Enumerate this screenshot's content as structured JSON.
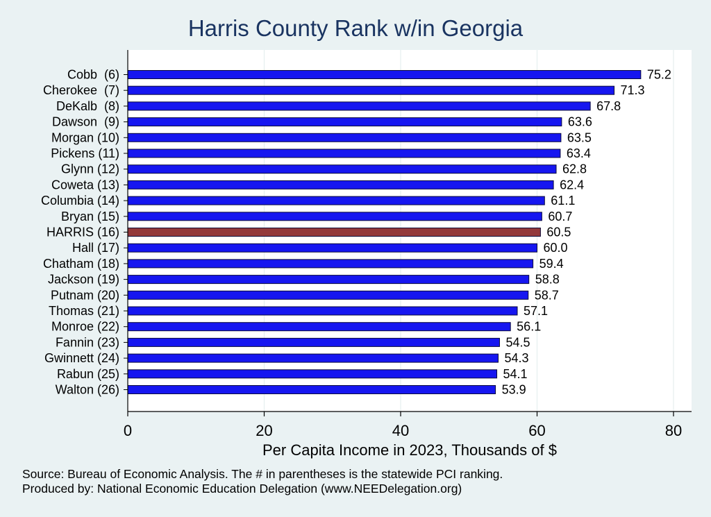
{
  "chart_data": {
    "type": "bar",
    "orientation": "horizontal",
    "title": "Harris County Rank w/in Georgia",
    "xlabel": "Per Capita Income in 2023, Thousands of $",
    "ylabel": "",
    "xlim": [
      0,
      80
    ],
    "xticks": [
      "0",
      "20",
      "40",
      "60",
      "80"
    ],
    "categories": [
      "Cobb  (6)",
      "Cherokee  (7)",
      "DeKalb  (8)",
      "Dawson  (9)",
      "Morgan (10)",
      "Pickens (11)",
      "Glynn (12)",
      "Coweta (13)",
      "Columbia (14)",
      "Bryan (15)",
      "HARRIS (16)",
      "Hall (17)",
      "Chatham (18)",
      "Jackson (19)",
      "Putnam (20)",
      "Thomas (21)",
      "Monroe (22)",
      "Fannin (23)",
      "Gwinnett (24)",
      "Rabun (25)",
      "Walton (26)"
    ],
    "values": [
      75.2,
      71.3,
      67.8,
      63.6,
      63.5,
      63.4,
      62.8,
      62.4,
      61.1,
      60.7,
      60.5,
      60.0,
      59.4,
      58.8,
      58.7,
      57.1,
      56.1,
      54.5,
      54.3,
      54.1,
      53.9
    ],
    "value_labels": [
      "75.2",
      "71.3",
      "67.8",
      "63.6",
      "63.5",
      "63.4",
      "62.8",
      "62.4",
      "61.1",
      "60.7",
      "60.5",
      "60.0",
      "59.4",
      "58.8",
      "58.7",
      "57.1",
      "56.1",
      "54.5",
      "54.3",
      "54.1",
      "53.9"
    ],
    "highlight_index": 10,
    "colors": {
      "bar": "#1616f0",
      "highlight": "#93393b",
      "outline": "#0b0b3a"
    },
    "grid": true,
    "legend": "none"
  },
  "footer": {
    "source": "Source: Bureau of Economic Analysis. The # in parentheses is the statewide PCI ranking.",
    "produced": "Produced by: National Economic Education Delegation (www.NEEDelegation.org)"
  }
}
